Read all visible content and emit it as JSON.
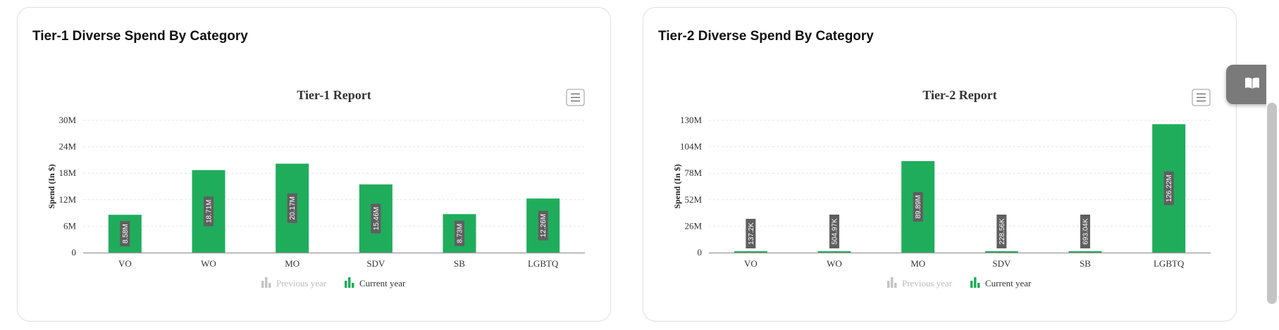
{
  "cards": [
    {
      "title": "Tier-1 Diverse Spend By Category",
      "chart_data": {
        "type": "bar",
        "title": "Tier-1 Report",
        "ylabel": "Spend (In $)",
        "xlabel": "",
        "categories": [
          "VO",
          "WO",
          "MO",
          "SDV",
          "SB",
          "LGBTQ"
        ],
        "y_ticks": [
          "0",
          "6M",
          "12M",
          "18M",
          "24M",
          "30M"
        ],
        "ylim": [
          0,
          30000000
        ],
        "series": [
          {
            "name": "Previous year",
            "values": [
              0,
              0,
              0,
              0,
              0,
              0
            ],
            "labels": [
              "",
              "",
              "",
              "",
              "",
              ""
            ]
          },
          {
            "name": "Current year",
            "values": [
              8580000,
              18710000,
              20170000,
              15460000,
              8730000,
              12260000
            ],
            "labels": [
              "8.58M",
              "18.71M",
              "20.17M",
              "15.46M",
              "8.73M",
              "12.26M"
            ]
          }
        ],
        "grid": true,
        "legend": "bottom-center"
      }
    },
    {
      "title": "Tier-2 Diverse Spend By Category",
      "chart_data": {
        "type": "bar",
        "title": "Tier-2 Report",
        "ylabel": "Spend (In $)",
        "xlabel": "",
        "categories": [
          "VO",
          "WO",
          "MO",
          "SDV",
          "SB",
          "LGBTQ"
        ],
        "y_ticks": [
          "0",
          "26M",
          "52M",
          "78M",
          "104M",
          "130M"
        ],
        "ylim": [
          0,
          130000000
        ],
        "series": [
          {
            "name": "Previous year",
            "values": [
              0,
              0,
              0,
              0,
              0,
              0
            ],
            "labels": [
              "",
              "",
              "",
              "",
              "",
              ""
            ]
          },
          {
            "name": "Current year",
            "values": [
              137200,
              504970,
              89890000,
              228560,
              693040,
              126220000
            ],
            "labels": [
              "137.2K",
              "504.97K",
              "89.89M",
              "228.56K",
              "693.04K",
              "126.22M"
            ]
          }
        ],
        "grid": true,
        "legend": "bottom-center"
      }
    }
  ],
  "colors": {
    "current": "#1fad5c",
    "previous": "#c4c4c4",
    "label_bg": "#5f5f5f",
    "grid": "#e6e6e6",
    "axis": "#999999"
  },
  "side_button_icon": "book-icon"
}
